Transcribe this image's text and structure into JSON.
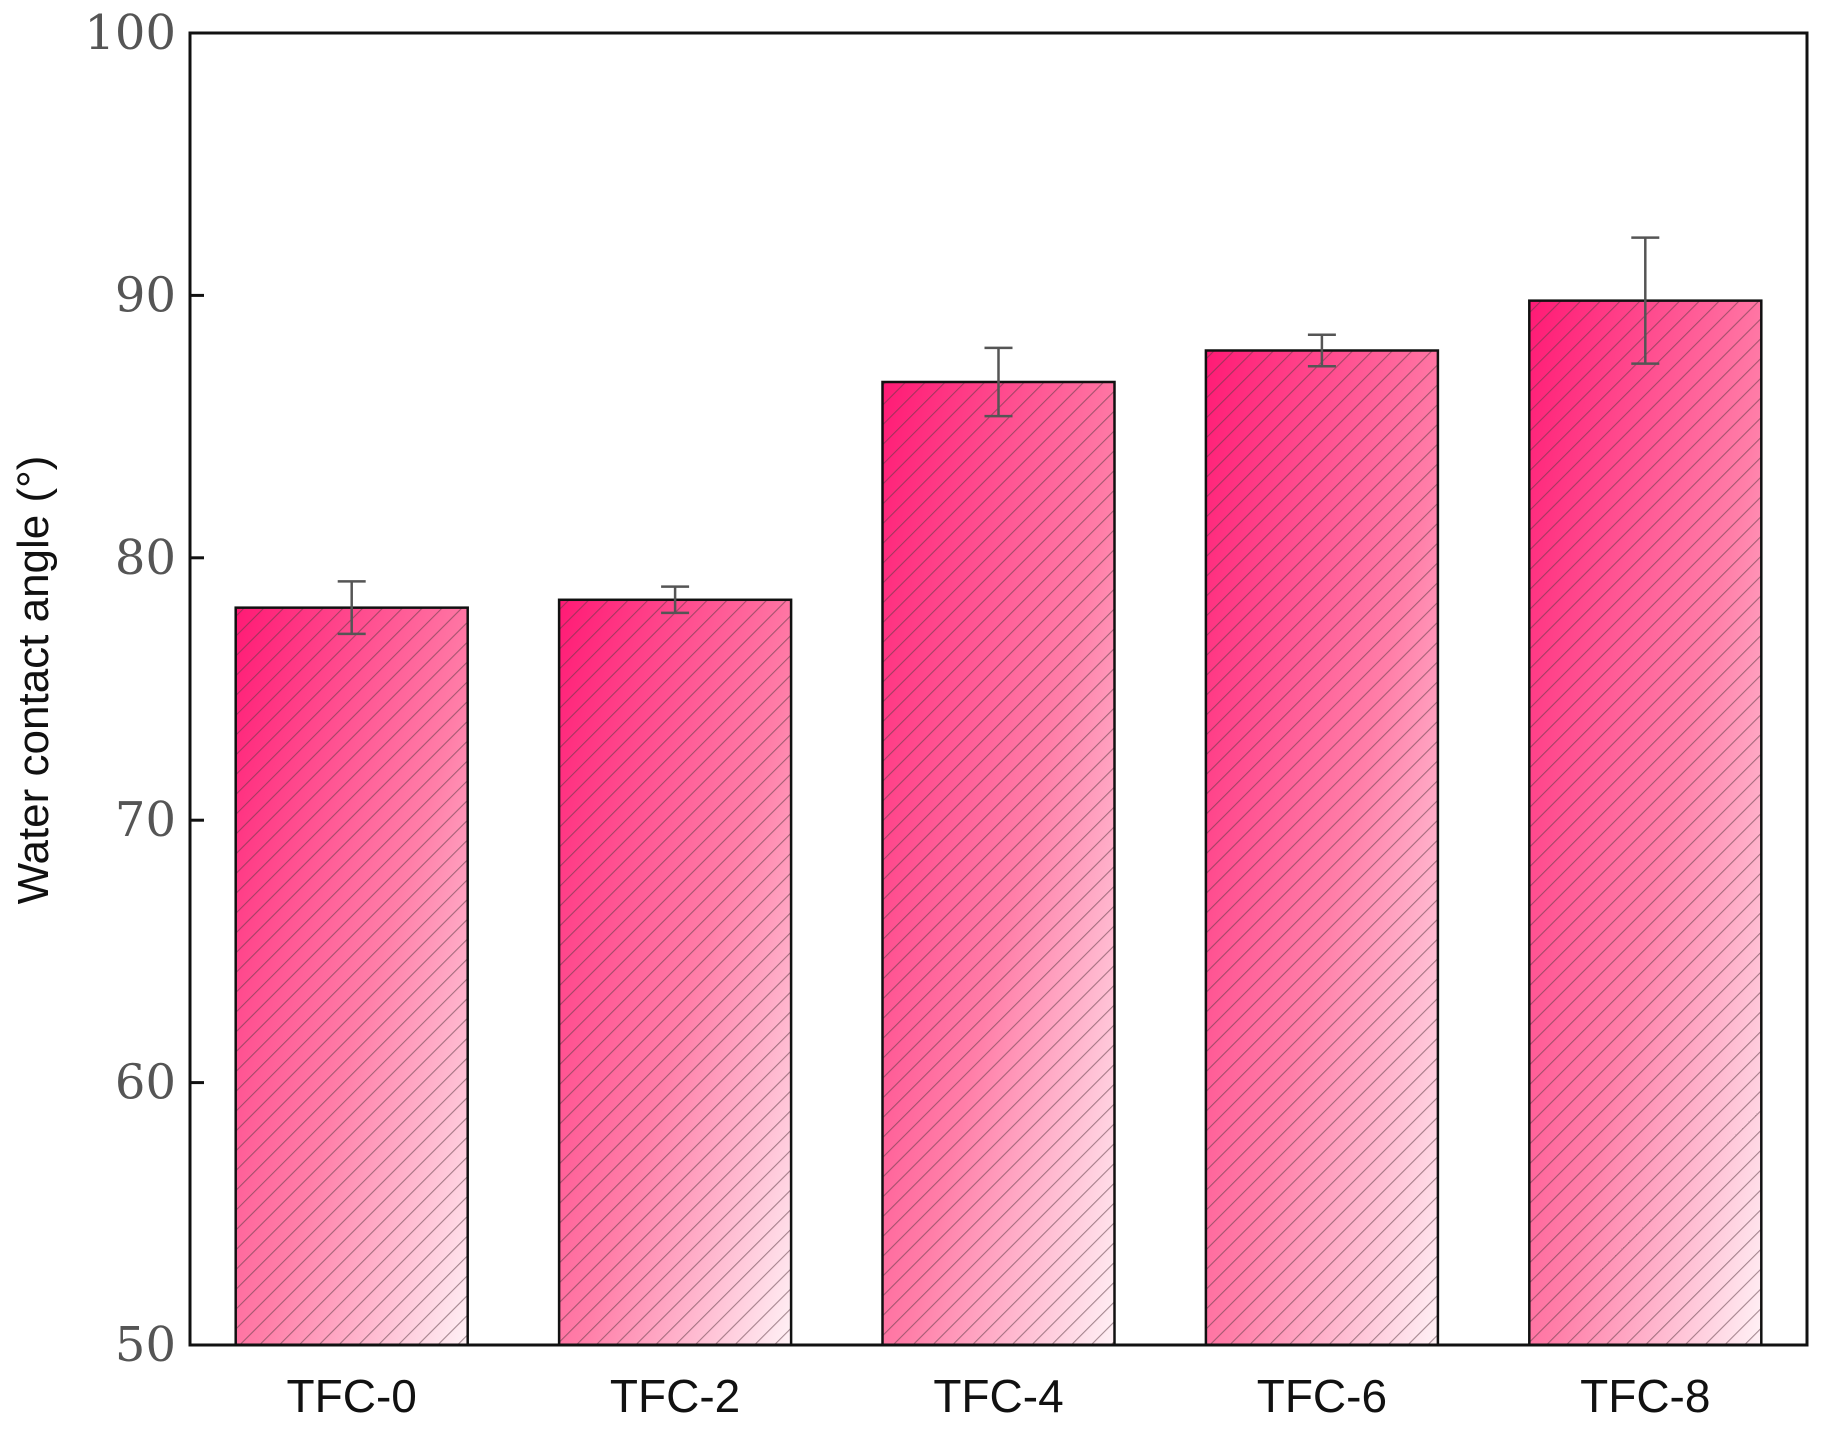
{
  "chart_data": {
    "type": "bar",
    "title": "",
    "xlabel": "",
    "ylabel": "Water contact angle (°)",
    "ylim": [
      50,
      100
    ],
    "yticks": [
      "50",
      "60",
      "70",
      "80",
      "90",
      "100"
    ],
    "categories": [
      "TFC-0",
      "TFC-2",
      "TFC-4",
      "TFC-6",
      "TFC-8"
    ],
    "values": [
      78.1,
      78.4,
      86.7,
      87.9,
      89.8
    ],
    "errors": [
      1.0,
      0.5,
      1.3,
      0.6,
      2.4
    ],
    "grid": false,
    "colors": {
      "bar_top": "#ff1a75",
      "bar_bottom": "#fff2f6",
      "hatch": "#5a3a44",
      "axis": "#111111",
      "error_bar": "#555555"
    }
  }
}
